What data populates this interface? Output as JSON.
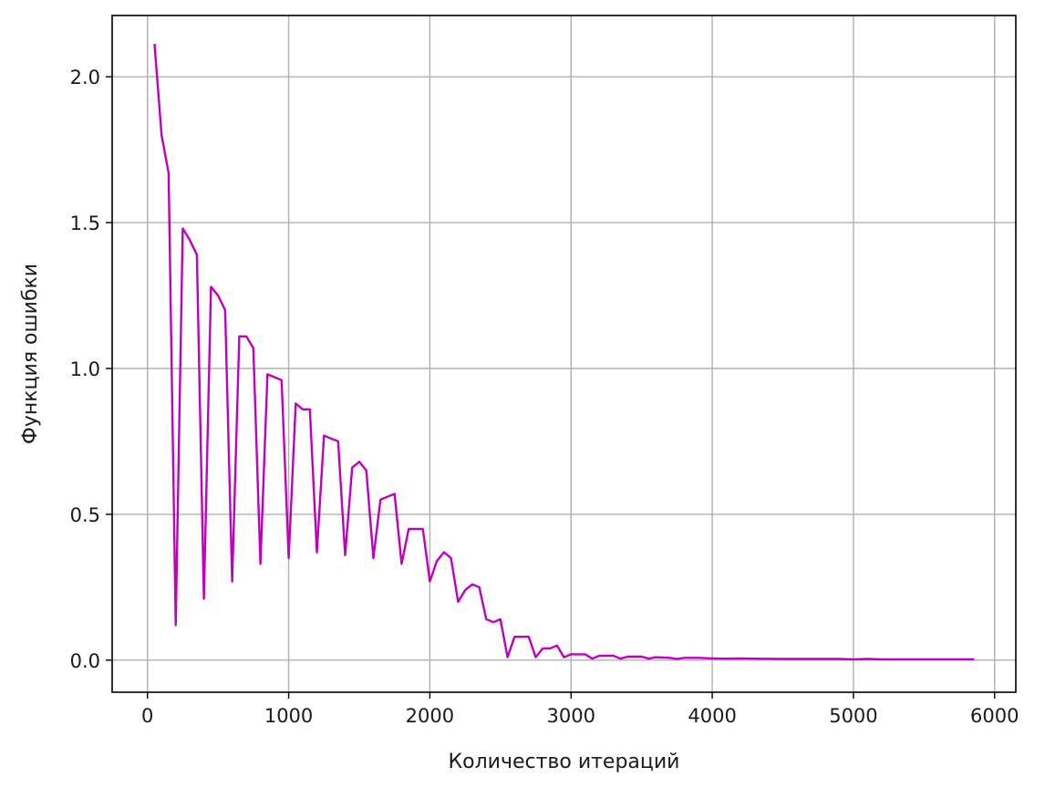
{
  "chart_data": {
    "type": "line",
    "title": "",
    "xlabel": "Количество итераций",
    "ylabel": "Функция ошибки",
    "xlim": [
      -250,
      6150
    ],
    "ylim": [
      -0.11,
      2.21
    ],
    "x_ticks": [
      0,
      1000,
      2000,
      3000,
      4000,
      5000,
      6000
    ],
    "x_tick_labels": [
      "0",
      "1000",
      "2000",
      "3000",
      "4000",
      "5000",
      "6000"
    ],
    "y_ticks": [
      0.0,
      0.5,
      1.0,
      1.5,
      2.0
    ],
    "y_tick_labels": [
      "0.0",
      "0.5",
      "1.0",
      "1.5",
      "2.0"
    ],
    "grid": true,
    "legend": "none",
    "line_color": "#bf00bf",
    "series": [
      {
        "x": [
          50,
          100,
          150,
          200,
          250,
          300,
          350,
          400,
          450,
          500,
          550,
          600,
          650,
          700,
          750,
          800,
          850,
          900,
          950,
          1000,
          1050,
          1100,
          1150,
          1200,
          1250,
          1300,
          1350,
          1400,
          1450,
          1500,
          1550,
          1600,
          1650,
          1700,
          1750,
          1800,
          1850,
          1900,
          1950,
          2000,
          2050,
          2100,
          2150,
          2200,
          2250,
          2300,
          2350,
          2400,
          2450,
          2500,
          2550,
          2600,
          2650,
          2700,
          2750,
          2800,
          2850,
          2900,
          2950,
          3000,
          3050,
          3100,
          3150,
          3200,
          3300,
          3350,
          3400,
          3500,
          3550,
          3600,
          3700,
          3750,
          3800,
          3900,
          4000,
          4100,
          4200,
          4300,
          4500,
          4700,
          4900,
          5000,
          5100,
          5200,
          5300,
          5400,
          5500,
          5600,
          5700,
          5800,
          5850
        ],
        "y": [
          2.11,
          1.8,
          1.67,
          0.12,
          1.48,
          1.44,
          1.39,
          0.21,
          1.28,
          1.25,
          1.2,
          0.27,
          1.11,
          1.11,
          1.07,
          0.33,
          0.98,
          0.97,
          0.96,
          0.35,
          0.88,
          0.86,
          0.86,
          0.37,
          0.77,
          0.76,
          0.75,
          0.36,
          0.66,
          0.68,
          0.65,
          0.35,
          0.55,
          0.56,
          0.57,
          0.33,
          0.45,
          0.45,
          0.45,
          0.27,
          0.34,
          0.37,
          0.35,
          0.2,
          0.24,
          0.26,
          0.25,
          0.14,
          0.13,
          0.14,
          0.01,
          0.08,
          0.08,
          0.08,
          0.01,
          0.04,
          0.04,
          0.05,
          0.01,
          0.02,
          0.02,
          0.02,
          0.005,
          0.015,
          0.015,
          0.005,
          0.012,
          0.012,
          0.005,
          0.01,
          0.008,
          0.004,
          0.008,
          0.008,
          0.006,
          0.005,
          0.006,
          0.005,
          0.004,
          0.004,
          0.004,
          0.003,
          0.004,
          0.003,
          0.003,
          0.003,
          0.003,
          0.003,
          0.003,
          0.003,
          0.003
        ]
      }
    ]
  }
}
